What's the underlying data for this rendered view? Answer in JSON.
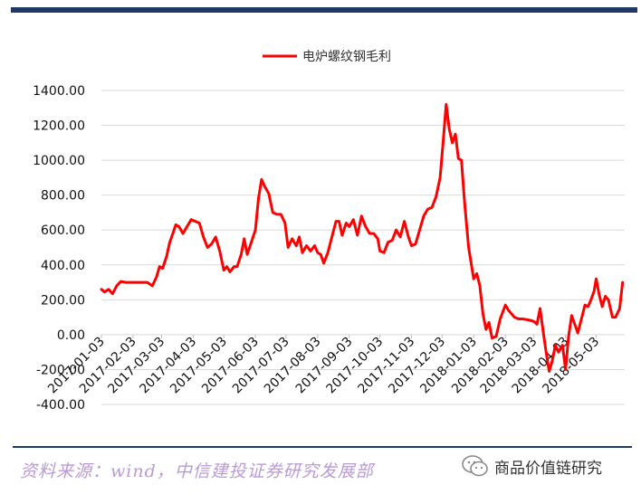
{
  "chart_data": {
    "type": "line",
    "title": "",
    "xlabel": "",
    "ylabel": "",
    "legend": {
      "position": "top-center"
    },
    "ylim": [
      -400,
      1400
    ],
    "grid": true,
    "y_ticks": [
      "1400.00",
      "1200.00",
      "1000.00",
      "800.00",
      "600.00",
      "400.00",
      "200.00",
      "0.00",
      "-200.00",
      "-400.00"
    ],
    "x_ticks": [
      "2017-01-03",
      "2017-02-03",
      "2017-03-03",
      "2017-04-03",
      "2017-05-03",
      "2017-06-03",
      "2017-07-03",
      "2017-08-03",
      "2017-09-03",
      "2017-10-03",
      "2017-11-03",
      "2017-12-03",
      "2018-01-03",
      "2018-02-03",
      "2018-03-03",
      "2018-04-03",
      "2018-05-03"
    ],
    "series": [
      {
        "name": "电炉螺纹钢毛利",
        "color": "#ff0000",
        "points": [
          [
            "2017-01-03",
            260
          ],
          [
            "2017-01-06",
            245
          ],
          [
            "2017-01-10",
            260
          ],
          [
            "2017-01-14",
            235
          ],
          [
            "2017-01-18",
            280
          ],
          [
            "2017-01-22",
            305
          ],
          [
            "2017-01-27",
            300
          ],
          [
            "2017-02-03",
            300
          ],
          [
            "2017-02-10",
            300
          ],
          [
            "2017-02-17",
            300
          ],
          [
            "2017-02-22",
            280
          ],
          [
            "2017-02-26",
            330
          ],
          [
            "2017-03-01",
            390
          ],
          [
            "2017-03-04",
            380
          ],
          [
            "2017-03-08",
            450
          ],
          [
            "2017-03-11",
            530
          ],
          [
            "2017-03-14",
            580
          ],
          [
            "2017-03-17",
            630
          ],
          [
            "2017-03-20",
            620
          ],
          [
            "2017-03-24",
            580
          ],
          [
            "2017-03-28",
            620
          ],
          [
            "2017-04-01",
            660
          ],
          [
            "2017-04-05",
            650
          ],
          [
            "2017-04-09",
            640
          ],
          [
            "2017-04-13",
            560
          ],
          [
            "2017-04-17",
            500
          ],
          [
            "2017-04-21",
            520
          ],
          [
            "2017-04-25",
            560
          ],
          [
            "2017-04-29",
            480
          ],
          [
            "2017-05-03",
            370
          ],
          [
            "2017-05-06",
            390
          ],
          [
            "2017-05-09",
            360
          ],
          [
            "2017-05-13",
            390
          ],
          [
            "2017-05-16",
            390
          ],
          [
            "2017-05-20",
            460
          ],
          [
            "2017-05-23",
            550
          ],
          [
            "2017-05-26",
            460
          ],
          [
            "2017-05-30",
            530
          ],
          [
            "2017-06-03",
            600
          ],
          [
            "2017-06-06",
            780
          ],
          [
            "2017-06-09",
            890
          ],
          [
            "2017-06-12",
            850
          ],
          [
            "2017-06-16",
            810
          ],
          [
            "2017-06-20",
            700
          ],
          [
            "2017-06-24",
            690
          ],
          [
            "2017-06-28",
            690
          ],
          [
            "2017-07-02",
            640
          ],
          [
            "2017-07-05",
            500
          ],
          [
            "2017-07-09",
            550
          ],
          [
            "2017-07-13",
            510
          ],
          [
            "2017-07-16",
            560
          ],
          [
            "2017-07-19",
            470
          ],
          [
            "2017-07-23",
            510
          ],
          [
            "2017-07-27",
            480
          ],
          [
            "2017-07-31",
            510
          ],
          [
            "2017-08-03",
            470
          ],
          [
            "2017-08-06",
            460
          ],
          [
            "2017-08-09",
            410
          ],
          [
            "2017-08-13",
            470
          ],
          [
            "2017-08-17",
            560
          ],
          [
            "2017-08-21",
            650
          ],
          [
            "2017-08-24",
            650
          ],
          [
            "2017-08-27",
            570
          ],
          [
            "2017-08-31",
            640
          ],
          [
            "2017-09-03",
            620
          ],
          [
            "2017-09-07",
            660
          ],
          [
            "2017-09-11",
            570
          ],
          [
            "2017-09-15",
            680
          ],
          [
            "2017-09-19",
            620
          ],
          [
            "2017-09-23",
            580
          ],
          [
            "2017-09-27",
            580
          ],
          [
            "2017-10-01",
            550
          ],
          [
            "2017-10-03",
            480
          ],
          [
            "2017-10-07",
            470
          ],
          [
            "2017-10-11",
            530
          ],
          [
            "2017-10-15",
            540
          ],
          [
            "2017-10-19",
            600
          ],
          [
            "2017-10-23",
            560
          ],
          [
            "2017-10-27",
            650
          ],
          [
            "2017-10-31",
            560
          ],
          [
            "2017-11-03",
            510
          ],
          [
            "2017-11-07",
            520
          ],
          [
            "2017-11-11",
            600
          ],
          [
            "2017-11-15",
            680
          ],
          [
            "2017-11-19",
            720
          ],
          [
            "2017-11-23",
            730
          ],
          [
            "2017-11-27",
            790
          ],
          [
            "2017-12-01",
            900
          ],
          [
            "2017-12-04",
            1100
          ],
          [
            "2017-12-07",
            1320
          ],
          [
            "2017-12-10",
            1180
          ],
          [
            "2017-12-13",
            1100
          ],
          [
            "2017-12-16",
            1150
          ],
          [
            "2017-12-19",
            1010
          ],
          [
            "2017-12-22",
            1000
          ],
          [
            "2017-12-25",
            760
          ],
          [
            "2017-12-29",
            500
          ],
          [
            "2018-01-03",
            320
          ],
          [
            "2018-01-06",
            350
          ],
          [
            "2018-01-09",
            280
          ],
          [
            "2018-01-12",
            120
          ],
          [
            "2018-01-15",
            30
          ],
          [
            "2018-01-18",
            70
          ],
          [
            "2018-01-21",
            -20
          ],
          [
            "2018-01-25",
            -10
          ],
          [
            "2018-01-29",
            90
          ],
          [
            "2018-02-03",
            170
          ],
          [
            "2018-02-06",
            140
          ],
          [
            "2018-02-09",
            120
          ],
          [
            "2018-02-12",
            100
          ],
          [
            "2018-02-16",
            90
          ],
          [
            "2018-02-20",
            90
          ],
          [
            "2018-02-25",
            85
          ],
          [
            "2018-03-01",
            80
          ],
          [
            "2018-03-03",
            75
          ],
          [
            "2018-03-06",
            60
          ],
          [
            "2018-03-09",
            150
          ],
          [
            "2018-03-12",
            20
          ],
          [
            "2018-03-15",
            -100
          ],
          [
            "2018-03-18",
            -210
          ],
          [
            "2018-03-21",
            -150
          ],
          [
            "2018-03-24",
            -60
          ],
          [
            "2018-03-27",
            -100
          ],
          [
            "2018-03-31",
            -60
          ],
          [
            "2018-04-03",
            -200
          ],
          [
            "2018-04-06",
            -10
          ],
          [
            "2018-04-09",
            110
          ],
          [
            "2018-04-12",
            60
          ],
          [
            "2018-04-15",
            10
          ],
          [
            "2018-04-19",
            100
          ],
          [
            "2018-04-22",
            170
          ],
          [
            "2018-04-25",
            160
          ],
          [
            "2018-04-28",
            200
          ],
          [
            "2018-05-01",
            250
          ],
          [
            "2018-05-03",
            320
          ],
          [
            "2018-05-06",
            230
          ],
          [
            "2018-05-09",
            160
          ],
          [
            "2018-05-12",
            220
          ],
          [
            "2018-05-15",
            200
          ],
          [
            "2018-05-19",
            100
          ],
          [
            "2018-05-22",
            100
          ],
          [
            "2018-05-26",
            150
          ],
          [
            "2018-05-29",
            300
          ]
        ]
      }
    ]
  },
  "footer": {
    "source_text": "资料来源：wind，中信建投证券研究发展部",
    "watermark_text": "商品价值链研究",
    "watermark_icon": "wechat-icon"
  }
}
